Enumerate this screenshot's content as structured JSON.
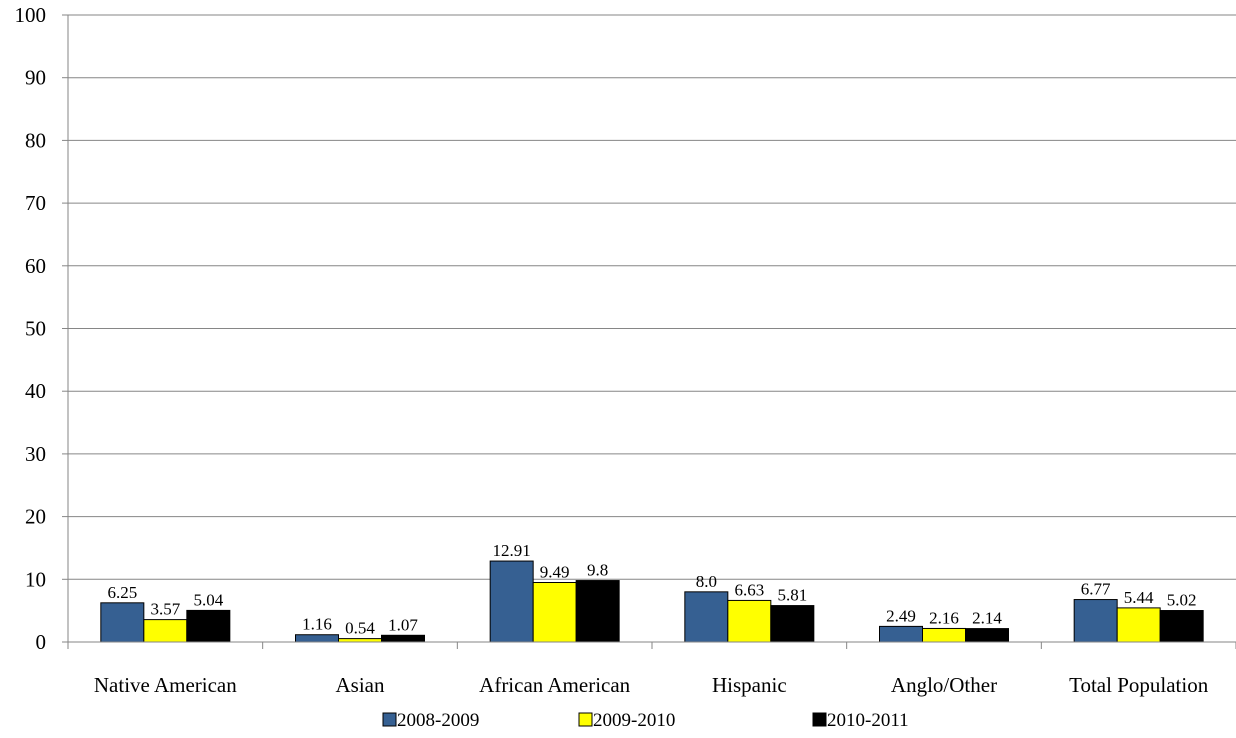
{
  "chart_data": {
    "type": "bar",
    "categories": [
      "Native American",
      "Asian",
      "African American",
      "Hispanic",
      "Anglo/Other",
      "Total Population"
    ],
    "series": [
      {
        "name": "2008-2009",
        "color": "#366092",
        "values": [
          6.25,
          1.16,
          12.91,
          8.0,
          2.49,
          6.77
        ],
        "labels": [
          "6.25",
          "1.16",
          "12.91",
          "8.0",
          "2.49",
          "6.77"
        ]
      },
      {
        "name": "2009-2010",
        "color": "#FFFF00",
        "values": [
          3.57,
          0.54,
          9.49,
          6.63,
          2.16,
          5.44
        ],
        "labels": [
          "3.57",
          "0.54",
          "9.49",
          "6.63",
          "2.16",
          "5.44"
        ]
      },
      {
        "name": "2010-2011",
        "color": "#000000",
        "values": [
          5.04,
          1.07,
          9.8,
          5.81,
          2.14,
          5.02
        ],
        "labels": [
          "5.04",
          "1.07",
          "9.8",
          "5.81",
          "2.14",
          "5.02"
        ]
      }
    ],
    "ylim": [
      0,
      100
    ],
    "yticks": [
      "0",
      "10",
      "20",
      "30",
      "40",
      "50",
      "60",
      "70",
      "80",
      "90",
      "100"
    ],
    "title": "",
    "xlabel": "",
    "ylabel": "",
    "grid": true,
    "legend_position": "bottom"
  }
}
